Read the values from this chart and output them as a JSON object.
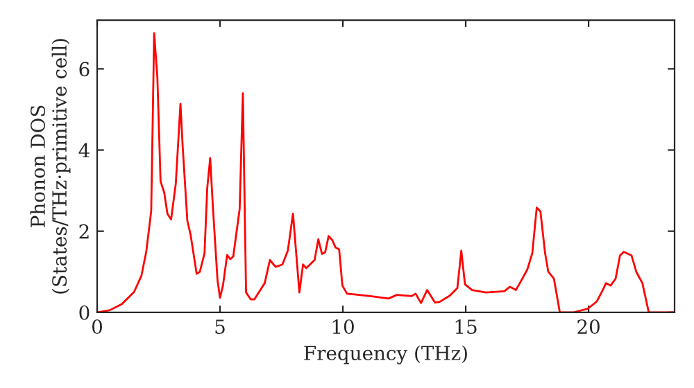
{
  "chart_data": {
    "type": "line",
    "xlabel": "Frequency (THz)",
    "ylabel": "Phonon DOS\n(States/THz·primitive cell)",
    "xlim": [
      0,
      23.5
    ],
    "ylim": [
      0,
      7.2
    ],
    "xticks": [
      0,
      5,
      10,
      15,
      20
    ],
    "yticks": [
      0,
      2,
      4,
      6
    ],
    "grid": false,
    "marker": "none",
    "line_style": "solid",
    "series": [
      {
        "color": "#ff0000",
        "x": [
          0,
          0.5,
          1.0,
          1.5,
          1.8,
          2.0,
          2.2,
          2.32,
          2.45,
          2.58,
          2.73,
          2.86,
          3.01,
          3.2,
          3.39,
          3.48,
          3.67,
          3.8,
          4.05,
          4.18,
          4.37,
          4.48,
          4.6,
          4.71,
          4.9,
          5.0,
          5.12,
          5.29,
          5.42,
          5.54,
          5.8,
          5.93,
          6.06,
          6.25,
          6.4,
          6.69,
          6.82,
          7.03,
          7.26,
          7.54,
          7.76,
          7.97,
          8.23,
          8.38,
          8.51,
          8.85,
          9.0,
          9.15,
          9.28,
          9.42,
          9.57,
          9.7,
          9.85,
          9.98,
          10.17,
          11.11,
          11.86,
          12.2,
          12.8,
          12.96,
          13.18,
          13.43,
          13.75,
          13.94,
          14.35,
          14.66,
          14.82,
          14.97,
          15.26,
          15.82,
          16.57,
          16.8,
          17.04,
          17.23,
          17.51,
          17.71,
          17.89,
          18.04,
          18.23,
          18.36,
          18.59,
          18.83,
          19.4,
          19.97,
          20.34,
          20.62,
          20.71,
          20.9,
          21.1,
          21.28,
          21.43,
          21.75,
          21.94,
          22.19,
          22.45,
          23.45
        ],
        "values": [
          0,
          0.05,
          0.2,
          0.5,
          0.9,
          1.5,
          2.5,
          6.88,
          5.8,
          3.23,
          2.95,
          2.43,
          2.29,
          3.17,
          5.14,
          4.09,
          2.26,
          1.92,
          0.95,
          1.0,
          1.46,
          3.06,
          3.8,
          2.6,
          0.78,
          0.36,
          0.66,
          1.41,
          1.31,
          1.38,
          2.55,
          5.4,
          0.49,
          0.32,
          0.32,
          0.6,
          0.72,
          1.29,
          1.12,
          1.18,
          1.52,
          2.43,
          0.49,
          1.18,
          1.09,
          1.29,
          1.8,
          1.44,
          1.48,
          1.88,
          1.78,
          1.6,
          1.55,
          0.66,
          0.46,
          0.4,
          0.34,
          0.43,
          0.4,
          0.46,
          0.23,
          0.55,
          0.24,
          0.26,
          0.41,
          0.6,
          1.52,
          0.69,
          0.55,
          0.49,
          0.52,
          0.63,
          0.55,
          0.75,
          1.06,
          1.46,
          2.58,
          2.49,
          1.46,
          1.0,
          0.83,
          0,
          0,
          0.09,
          0.27,
          0.6,
          0.72,
          0.66,
          0.83,
          1.4,
          1.49,
          1.4,
          1.0,
          0.72,
          0,
          0
        ]
      }
    ]
  }
}
